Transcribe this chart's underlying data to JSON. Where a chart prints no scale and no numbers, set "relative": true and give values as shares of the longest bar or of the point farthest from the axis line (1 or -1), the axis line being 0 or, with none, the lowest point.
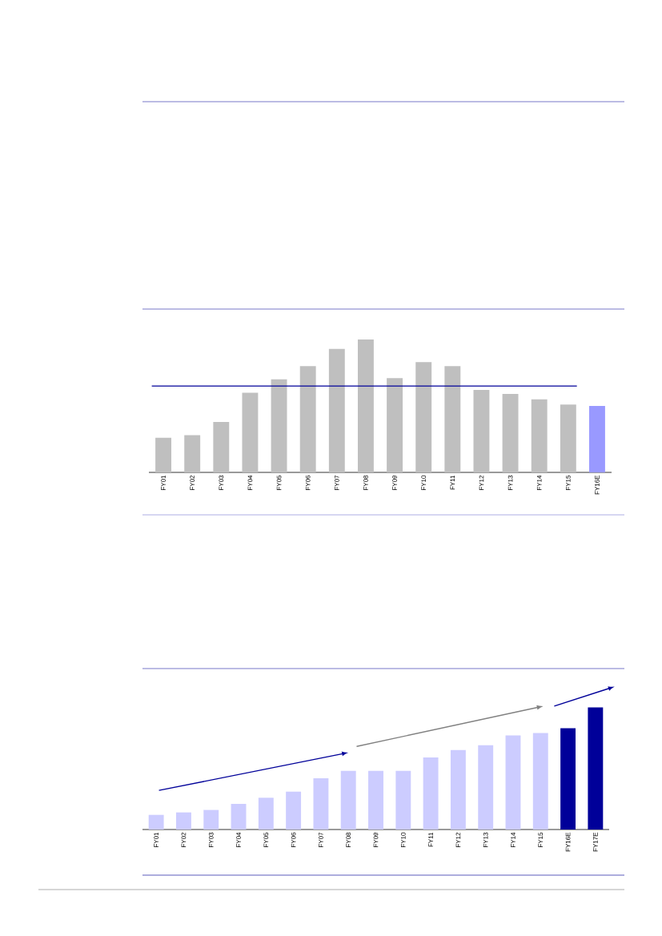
{
  "chart_data": [
    {
      "type": "bar",
      "relative": true,
      "categories": [
        "FY01",
        "FY02",
        "FY03",
        "FY04",
        "FY05",
        "FY06",
        "FY07",
        "FY08",
        "FY09",
        "FY10",
        "FY11",
        "FY12",
        "FY13",
        "FY14",
        "FY15",
        "FY16E"
      ],
      "values": [
        0.26,
        0.28,
        0.38,
        0.6,
        0.7,
        0.8,
        0.93,
        1,
        0.71,
        0.83,
        0.8,
        0.62,
        0.59,
        0.55,
        0.51,
        0.5
      ],
      "colors": [
        "#bfbfbf",
        "#bfbfbf",
        "#bfbfbf",
        "#bfbfbf",
        "#bfbfbf",
        "#bfbfbf",
        "#bfbfbf",
        "#bfbfbf",
        "#bfbfbf",
        "#bfbfbf",
        "#bfbfbf",
        "#bfbfbf",
        "#bfbfbf",
        "#bfbfbf",
        "#bfbfbf",
        "#9999ff"
      ],
      "ref_lines": [
        {
          "axis": "y",
          "value": 0.65,
          "color": "#000099"
        }
      ]
    },
    {
      "type": "bar",
      "relative": true,
      "categories": [
        "FY01",
        "FY02",
        "FY03",
        "FY04",
        "FY05",
        "FY06",
        "FY07",
        "FY08",
        "FY09",
        "FY10",
        "FY11",
        "FY12",
        "FY13",
        "FY14",
        "FY15",
        "FY16E",
        "FY17E"
      ],
      "values": [
        0.12,
        0.14,
        0.16,
        0.21,
        0.26,
        0.31,
        0.42,
        0.48,
        0.48,
        0.48,
        0.59,
        0.65,
        0.69,
        0.77,
        0.79,
        0.83,
        1
      ],
      "colors": [
        "#ccccff",
        "#ccccff",
        "#ccccff",
        "#ccccff",
        "#ccccff",
        "#ccccff",
        "#ccccff",
        "#ccccff",
        "#ccccff",
        "#ccccff",
        "#ccccff",
        "#ccccff",
        "#ccccff",
        "#ccccff",
        "#ccccff",
        "#000099",
        "#000099"
      ]
    }
  ]
}
